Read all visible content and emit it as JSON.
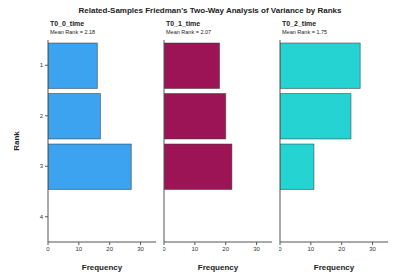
{
  "title": "Related-Samples Friedman's Two-Way Analysis of Variance by Ranks",
  "chart_data": [
    {
      "type": "histogram",
      "orientation": "horizontal",
      "title": "T0_0_time",
      "annotation": "Mean Rank = 2.18",
      "bins": [
        0.5,
        1.5,
        2.5,
        3.5
      ],
      "values": [
        16,
        17,
        27
      ],
      "color": "#3ba3f0",
      "xlabel": "Frequency",
      "ylabel": "Rank",
      "xlim": [
        0,
        35
      ],
      "xticks": [
        0,
        10,
        20,
        30
      ],
      "ylim": [
        0.5,
        4.5
      ],
      "yticks": [
        1,
        2,
        3,
        4
      ]
    },
    {
      "type": "histogram",
      "orientation": "horizontal",
      "title": "T0_1_time",
      "annotation": "Mean Rank = 2.07",
      "bins": [
        0.5,
        1.5,
        2.5,
        3.5
      ],
      "values": [
        18,
        20,
        22
      ],
      "color": "#9c1455",
      "xlabel": "Frequency",
      "xlim": [
        0,
        35
      ],
      "xticks": [
        0,
        10,
        20,
        30
      ],
      "ylim": [
        0.5,
        4.5
      ],
      "yticks": [
        1,
        2,
        3,
        4
      ],
      "tick_labels": "x"
    },
    {
      "type": "histogram",
      "orientation": "horizontal",
      "title": "T0_2_time",
      "annotation": "Mean Rank = 1.75",
      "bins": [
        0.5,
        1.5,
        2.5,
        3.5
      ],
      "values": [
        26,
        23,
        11
      ],
      "color": "#26d3d3",
      "xlabel": "Frequency",
      "xlim": [
        0,
        35
      ],
      "xticks": [
        0,
        10,
        20,
        30
      ],
      "ylim": [
        0.5,
        4.5
      ],
      "yticks": [
        1,
        2,
        3,
        4
      ],
      "tick_labels": "x"
    }
  ]
}
